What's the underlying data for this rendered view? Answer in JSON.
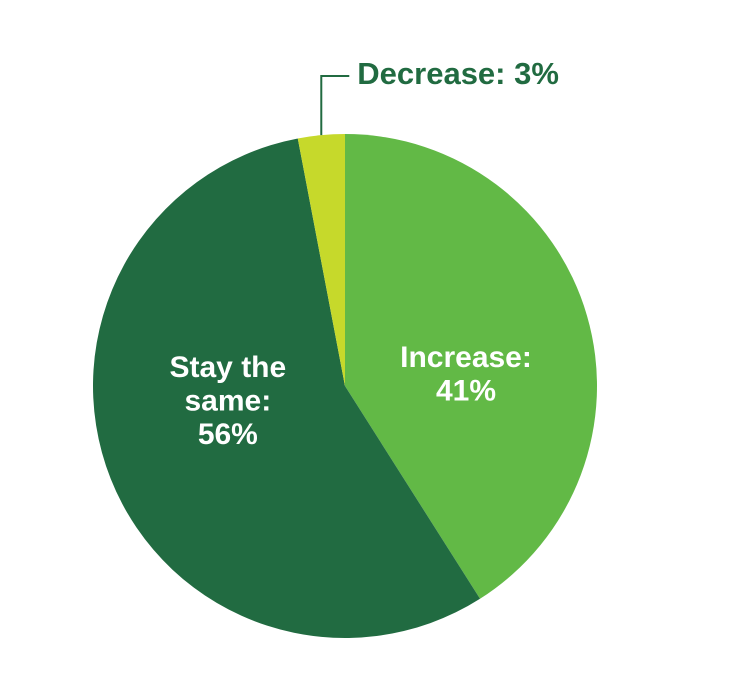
{
  "chart_data": {
    "type": "pie",
    "values": [
      41,
      56,
      3
    ],
    "value_labels": [
      "Increase: 41%",
      "Stay the same: 56%",
      "Decrease: 3%"
    ],
    "colors": [
      "#62b946",
      "#216b41",
      "#c6d92b"
    ]
  }
}
